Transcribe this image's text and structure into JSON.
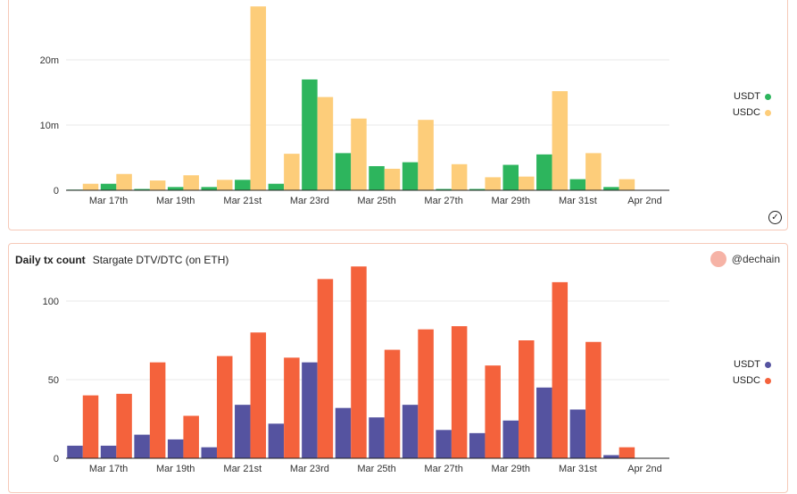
{
  "top": {
    "legend": [
      {
        "label": "USDT",
        "color": "#2db55d"
      },
      {
        "label": "USDC",
        "color": "#fdcd7a"
      }
    ],
    "check_icon": "check-circle-icon"
  },
  "bottom": {
    "title": "Daily tx count",
    "subtitle": "Stargate DTV/DTC (on ETH)",
    "brand": "@dechain",
    "legend": [
      {
        "label": "USDT",
        "color": "#5553a0"
      },
      {
        "label": "USDC",
        "color": "#f4623c"
      }
    ]
  },
  "chart_data": [
    {
      "type": "bar",
      "categories": [
        "Mar 16",
        "Mar 17",
        "Mar 18",
        "Mar 19",
        "Mar 20",
        "Mar 21",
        "Mar 22",
        "Mar 23",
        "Mar 24",
        "Mar 25",
        "Mar 26",
        "Mar 27",
        "Mar 28",
        "Mar 29",
        "Mar 30",
        "Mar 31",
        "Apr 1",
        "Apr 2"
      ],
      "tick_labels": [
        "Mar 17th",
        "Mar 19th",
        "Mar 21st",
        "Mar 23rd",
        "Mar 25th",
        "Mar 27th",
        "Mar 29th",
        "Mar 31st",
        "Apr 2nd"
      ],
      "yticks": [
        {
          "value": 0,
          "label": "0"
        },
        {
          "value": 10000000,
          "label": "10m"
        },
        {
          "value": 20000000,
          "label": "20m"
        }
      ],
      "ylim": [
        0,
        28500000
      ],
      "series": [
        {
          "name": "USDT",
          "color": "#2db55d",
          "values": [
            100000,
            1000000,
            200000,
            500000,
            500000,
            1600000,
            1000000,
            17000000,
            5700000,
            3700000,
            4300000,
            200000,
            200000,
            3900000,
            5500000,
            1700000,
            500000,
            0
          ]
        },
        {
          "name": "USDC",
          "color": "#fdcd7a",
          "values": [
            1000000,
            2500000,
            1500000,
            2300000,
            1600000,
            28200000,
            5600000,
            14300000,
            11000000,
            3300000,
            10800000,
            4000000,
            2000000,
            2100000,
            15200000,
            5700000,
            1700000,
            0
          ]
        }
      ],
      "grid": true,
      "legend_position": "right"
    },
    {
      "type": "bar",
      "title": "Daily tx count",
      "subtitle": "Stargate DTV/DTC (on ETH)",
      "categories": [
        "Mar 16",
        "Mar 17",
        "Mar 18",
        "Mar 19",
        "Mar 20",
        "Mar 21",
        "Mar 22",
        "Mar 23",
        "Mar 24",
        "Mar 25",
        "Mar 26",
        "Mar 27",
        "Mar 28",
        "Mar 29",
        "Mar 30",
        "Mar 31",
        "Apr 1",
        "Apr 2"
      ],
      "tick_labels": [
        "Mar 17th",
        "Mar 19th",
        "Mar 21st",
        "Mar 23rd",
        "Mar 25th",
        "Mar 27th",
        "Mar 29th",
        "Mar 31st",
        "Apr 2nd"
      ],
      "yticks": [
        {
          "value": 0,
          "label": "0"
        },
        {
          "value": 50,
          "label": "50"
        },
        {
          "value": 100,
          "label": "100"
        }
      ],
      "ylim": [
        0,
        125
      ],
      "series": [
        {
          "name": "USDT",
          "color": "#5553a0",
          "values": [
            8,
            8,
            15,
            12,
            7,
            34,
            22,
            61,
            32,
            26,
            34,
            18,
            16,
            24,
            45,
            31,
            2,
            0
          ]
        },
        {
          "name": "USDC",
          "color": "#f4623c",
          "values": [
            40,
            41,
            61,
            27,
            65,
            80,
            64,
            114,
            122,
            69,
            82,
            84,
            59,
            75,
            112,
            74,
            7,
            0
          ]
        }
      ],
      "grid": true,
      "legend_position": "right"
    }
  ]
}
